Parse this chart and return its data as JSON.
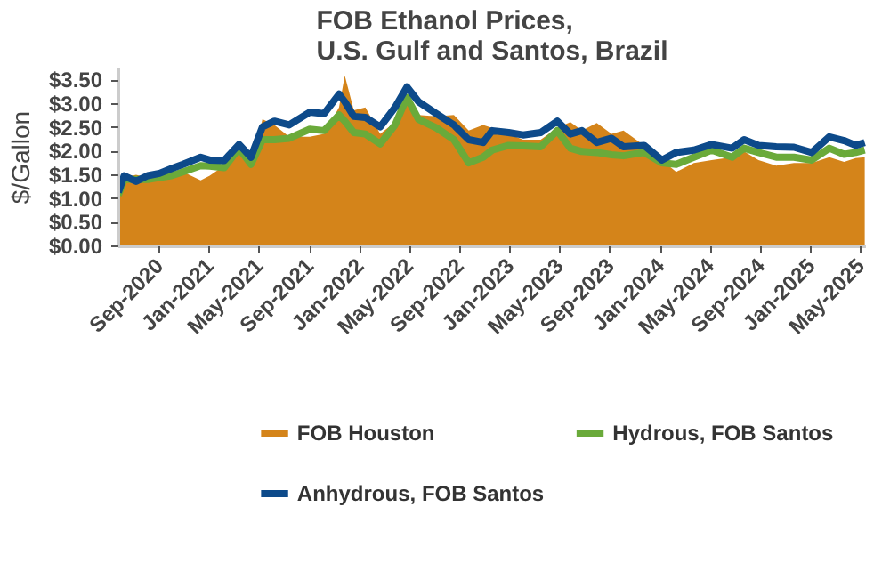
{
  "chart_data": {
    "type": "line",
    "title": "FOB Ethanol Prices,\nU.S. Gulf and Santos, Brazil",
    "ylabel": "$/Gallon",
    "x": [
      "2020-05-24",
      "2020-06-07",
      "2020-07-06",
      "2020-08-03",
      "2020-09-01",
      "2020-09-30",
      "2020-10-28",
      "2020-12-10",
      "2021-01-01",
      "2021-02-05",
      "2021-03-13",
      "2021-04-11",
      "2021-05-09",
      "2021-06-07",
      "2021-07-13",
      "2021-09-01",
      "2021-10-06",
      "2021-11-11",
      "2021-11-25",
      "2021-12-17",
      "2022-01-14",
      "2022-02-19",
      "2022-03-27",
      "2022-04-25",
      "2022-05-23",
      "2022-07-05",
      "2022-08-17",
      "2022-09-22",
      "2022-10-27",
      "2022-11-18",
      "2022-12-28",
      "2023-02-01",
      "2023-03-16",
      "2023-04-25",
      "2023-05-27",
      "2023-06-24",
      "2023-07-30",
      "2023-09-04",
      "2023-10-03",
      "2023-11-22",
      "2024-01-04",
      "2024-02-08",
      "2024-03-22",
      "2024-05-04",
      "2024-06-23",
      "2024-07-22",
      "2024-08-26",
      "2024-10-08",
      "2024-11-20",
      "2025-01-02",
      "2025-02-14",
      "2025-03-22",
      "2025-04-19",
      "2025-05-11"
    ],
    "series": [
      {
        "name": "FOB Houston",
        "type": "area",
        "color": "#d4841a",
        "values": [
          1.14,
          1.45,
          1.51,
          1.45,
          1.49,
          1.57,
          1.57,
          1.39,
          1.49,
          1.7,
          2.07,
          1.7,
          2.68,
          2.56,
          2.31,
          2.31,
          2.37,
          2.93,
          3.6,
          2.87,
          2.93,
          2.37,
          2.62,
          2.99,
          2.77,
          2.74,
          2.77,
          2.44,
          2.56,
          2.5,
          2.37,
          2.25,
          2.25,
          2.5,
          2.62,
          2.44,
          2.6,
          2.37,
          2.44,
          2.13,
          1.82,
          1.57,
          1.76,
          1.82,
          1.88,
          2.0,
          1.82,
          1.7,
          1.76,
          1.76,
          1.88,
          1.78,
          1.86,
          1.88
        ]
      },
      {
        "name": "Hydrous, FOB Santos",
        "color": "#6aaa3a",
        "values": [
          1.08,
          1.41,
          1.41,
          1.41,
          1.45,
          1.49,
          1.57,
          1.7,
          1.69,
          1.66,
          2.07,
          1.73,
          2.25,
          2.25,
          2.28,
          2.47,
          2.44,
          2.77,
          2.64,
          2.4,
          2.37,
          2.16,
          2.56,
          3.14,
          2.68,
          2.5,
          2.25,
          1.76,
          1.88,
          2.03,
          2.13,
          2.12,
          2.1,
          2.44,
          2.07,
          2.0,
          1.98,
          1.93,
          1.91,
          1.98,
          1.76,
          1.73,
          1.88,
          2.03,
          1.88,
          2.07,
          1.98,
          1.88,
          1.88,
          1.82,
          2.07,
          1.94,
          1.98,
          2.03
        ]
      },
      {
        "name": "Anhydrous, FOB Santos",
        "color": "#0d4a8a",
        "values": [
          1.14,
          1.49,
          1.37,
          1.49,
          1.54,
          1.64,
          1.73,
          1.88,
          1.82,
          1.81,
          2.15,
          1.88,
          2.52,
          2.64,
          2.56,
          2.83,
          2.8,
          3.21,
          3.05,
          2.74,
          2.72,
          2.52,
          2.93,
          3.36,
          3.05,
          2.8,
          2.56,
          2.25,
          2.19,
          2.44,
          2.4,
          2.35,
          2.4,
          2.64,
          2.37,
          2.44,
          2.19,
          2.28,
          2.1,
          2.13,
          1.82,
          1.98,
          2.03,
          2.15,
          2.07,
          2.25,
          2.13,
          2.1,
          2.09,
          1.98,
          2.31,
          2.23,
          2.13,
          2.19
        ]
      }
    ],
    "xlim": [
      "2020-05-24",
      "2025-05-14"
    ],
    "xticks": [
      {
        "value": "2020-09-01",
        "label": "Sep-2020"
      },
      {
        "value": "2021-01-01",
        "label": "Jan-2021"
      },
      {
        "value": "2021-05-01",
        "label": "May-2021"
      },
      {
        "value": "2021-09-01",
        "label": "Sep-2021"
      },
      {
        "value": "2022-01-01",
        "label": "Jan-2022"
      },
      {
        "value": "2022-05-01",
        "label": "May-2022"
      },
      {
        "value": "2022-09-01",
        "label": "Sep-2022"
      },
      {
        "value": "2023-01-01",
        "label": "Jan-2023"
      },
      {
        "value": "2023-05-01",
        "label": "May-2023"
      },
      {
        "value": "2023-09-01",
        "label": "Sep-2023"
      },
      {
        "value": "2024-01-01",
        "label": "Jan-2024"
      },
      {
        "value": "2024-05-01",
        "label": "May-2024"
      },
      {
        "value": "2024-09-01",
        "label": "Sep-2024"
      },
      {
        "value": "2025-01-01",
        "label": "Jan-2025"
      },
      {
        "value": "2025-05-01",
        "label": "May-2025"
      }
    ],
    "ylim": [
      0,
      3.75
    ],
    "yticks": [
      {
        "value": 0,
        "label": "$0.00"
      },
      {
        "value": 0.5,
        "label": "$0.50"
      },
      {
        "value": 1,
        "label": "$1.00"
      },
      {
        "value": 1.5,
        "label": "$1.50"
      },
      {
        "value": 2,
        "label": "$2.00"
      },
      {
        "value": 2.5,
        "label": "$2.50"
      },
      {
        "value": 3,
        "label": "$3.00"
      },
      {
        "value": 3.5,
        "label": "$3.50"
      }
    ],
    "grid": false,
    "legend": "bottom",
    "marker": "none",
    "line_style": "solid"
  }
}
